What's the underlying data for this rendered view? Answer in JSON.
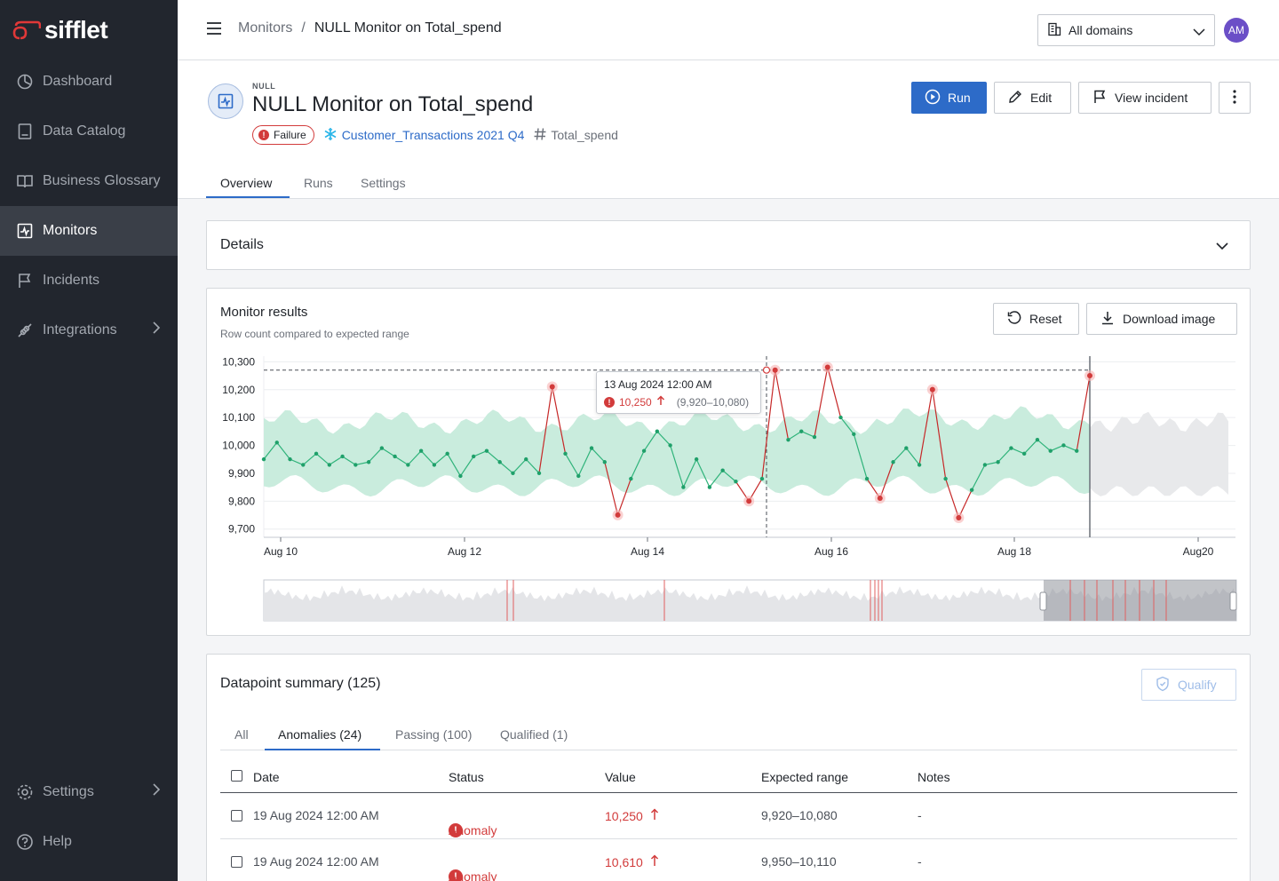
{
  "brand": {
    "name": "sifflet",
    "accent": "#e03838"
  },
  "sidebar": {
    "items": [
      {
        "label": "Dashboard",
        "icon": "dashboard-icon"
      },
      {
        "label": "Data Catalog",
        "icon": "book-icon"
      },
      {
        "label": "Business Glossary",
        "icon": "open-book-icon"
      },
      {
        "label": "Monitors",
        "icon": "monitor-icon",
        "active": true
      },
      {
        "label": "Incidents",
        "icon": "flag-icon"
      },
      {
        "label": "Integrations",
        "icon": "plug-icon"
      }
    ],
    "bottom": [
      {
        "label": "Settings",
        "icon": "gear-icon"
      },
      {
        "label": "Help",
        "icon": "help-icon"
      }
    ]
  },
  "header": {
    "breadcrumb_root": "Monitors",
    "breadcrumb_sep": "/",
    "breadcrumb_current": "NULL Monitor on Total_spend",
    "domain_select": "All domains",
    "avatar_initials": "AM"
  },
  "monitor": {
    "type": "NULL",
    "title": "NULL Monitor on Total_spend",
    "status": "Failure",
    "dataset": "Customer_Transactions 2021 Q4",
    "column": "Total_spend"
  },
  "actions": {
    "run": "Run",
    "edit": "Edit",
    "view_incident": "View incident"
  },
  "tabs": [
    "Overview",
    "Runs",
    "Settings"
  ],
  "details": {
    "title": "Details"
  },
  "results": {
    "title": "Monitor results",
    "subtitle": "Row count compared to expected range",
    "reset": "Reset",
    "download": "Download image",
    "tooltip": {
      "date": "13 Aug 2024 12:00 AM",
      "value": "10,250",
      "range": "(9,920–10,080)"
    }
  },
  "chart_data": {
    "type": "line",
    "y_ticks": [
      "10,300",
      "10,200",
      "10,100",
      "10,000",
      "9,900",
      "9,800",
      "9,700"
    ],
    "x_ticks": [
      "Aug 10",
      "Aug 12",
      "Aug 14",
      "Aug 16",
      "Aug 18",
      "Aug20"
    ],
    "ylim": [
      9680,
      10330
    ],
    "threshold": 10280,
    "series": [
      {
        "values": [
          9960,
          10020,
          9960,
          9940,
          9980,
          9940,
          9970,
          9940,
          9950,
          10000,
          9970,
          9940,
          9990,
          9940,
          9980,
          9900,
          9970,
          9990,
          9950,
          9910,
          9960,
          9910,
          10220,
          9980,
          9900,
          10000,
          9950,
          9760,
          9890,
          9990,
          10060,
          10010,
          9860,
          9960,
          9860,
          9920,
          9880,
          9810,
          9890,
          10280,
          10030,
          10060,
          10040,
          10290,
          10110,
          10050,
          9890,
          9820,
          9950,
          10000,
          9940,
          10210,
          9890,
          9750,
          9850,
          9940,
          9950,
          10000,
          9980,
          10030,
          9990,
          10010,
          9990,
          10260
        ]
      }
    ]
  },
  "summary": {
    "title": "Datapoint summary (125)",
    "qualify": "Qualify",
    "tabs": [
      "All",
      "Anomalies (24)",
      "Passing (100)",
      "Qualified (1)"
    ],
    "columns": [
      "Date",
      "Status",
      "Value",
      "Expected range",
      "Notes"
    ],
    "rows": [
      {
        "date": "19 Aug 2024 12:00 AM",
        "status": "Anomaly",
        "value": "10,250",
        "range": "9,920–10,080",
        "notes": "-"
      },
      {
        "date": "19 Aug 2024 12:00 AM",
        "status": "Anomaly",
        "value": "10,610",
        "range": "9,950–10,110",
        "notes": "-"
      }
    ]
  }
}
